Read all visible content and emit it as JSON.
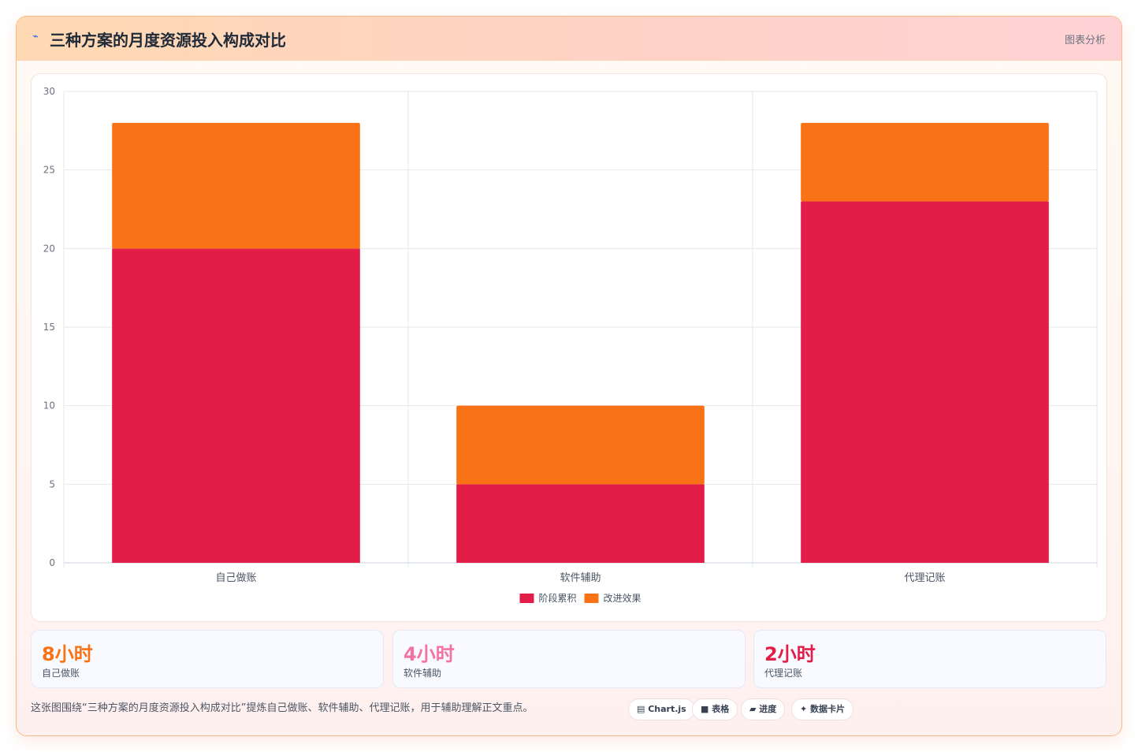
{
  "header": {
    "icon": "⌁",
    "title": "三种方案的月度资源投入构成对比",
    "tag": "图表分析"
  },
  "chart_data": {
    "type": "bar",
    "stacked": true,
    "categories": [
      "自己做账",
      "软件辅助",
      "代理记账"
    ],
    "series": [
      {
        "name": "阶段累积",
        "values": [
          20,
          5,
          23
        ],
        "color": "#e11d48"
      },
      {
        "name": "改进效果",
        "values": [
          8,
          5,
          5
        ],
        "color": "#f97316"
      }
    ],
    "ylim": [
      0,
      30
    ],
    "yticks": [
      0,
      5,
      10,
      15,
      20,
      25,
      30
    ],
    "grid": true,
    "legend": "bottom"
  },
  "stats": [
    {
      "value": "8小时",
      "label": "自己做账",
      "color": "#f97316"
    },
    {
      "value": "4小时",
      "label": "软件辅助",
      "color": "#f472a0"
    },
    {
      "value": "2小时",
      "label": "代理记账",
      "color": "#e11d48"
    }
  ],
  "footer": {
    "text": "这张图围绕“三种方案的月度资源投入构成对比”提炼自己做账、软件辅助、代理记账，用于辅助理解正文重点。",
    "pills": [
      "▤ Chart.js",
      "■ 表格",
      "▰ 进度",
      "✦ 数据卡片"
    ]
  }
}
